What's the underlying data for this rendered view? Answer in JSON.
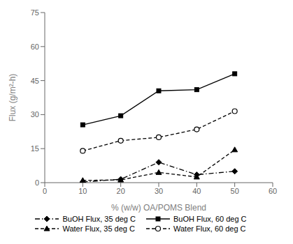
{
  "chart_data": {
    "type": "line",
    "x": [
      10,
      20,
      30,
      40,
      50
    ],
    "series": [
      {
        "name": "BuOH Flux, 35 deg C",
        "color": "#000000",
        "marker": "diamond",
        "line_style": "dashdot",
        "values": [
          0.3,
          1.5,
          9.0,
          3.5,
          5.0
        ]
      },
      {
        "name": "BuOH Flux, 60 deg C",
        "color": "#000000",
        "marker": "square",
        "line_style": "solid",
        "values": [
          25.5,
          29.5,
          40.5,
          41.0,
          48.0
        ]
      },
      {
        "name": "Water Flux, 35 deg C",
        "color": "#000000",
        "marker": "triangle",
        "line_style": "dashed",
        "values": [
          1.0,
          1.2,
          4.5,
          2.5,
          14.5
        ]
      },
      {
        "name": "Water Flux, 60 deg C",
        "color": "#000000",
        "marker": "open_circle",
        "line_style": "dashed",
        "values": [
          14.0,
          18.5,
          20.0,
          23.5,
          31.5
        ]
      }
    ],
    "xlabel": "% (w/w) OA/POMS Blend",
    "ylabel": "Flux (g/m²-h)",
    "xlim": [
      0,
      60
    ],
    "ylim": [
      0,
      75
    ],
    "xticks": [
      0,
      10,
      20,
      30,
      40,
      50,
      60
    ],
    "yticks": [
      0,
      15,
      30,
      45,
      60,
      75
    ],
    "grid": false,
    "legend": "bottom"
  }
}
